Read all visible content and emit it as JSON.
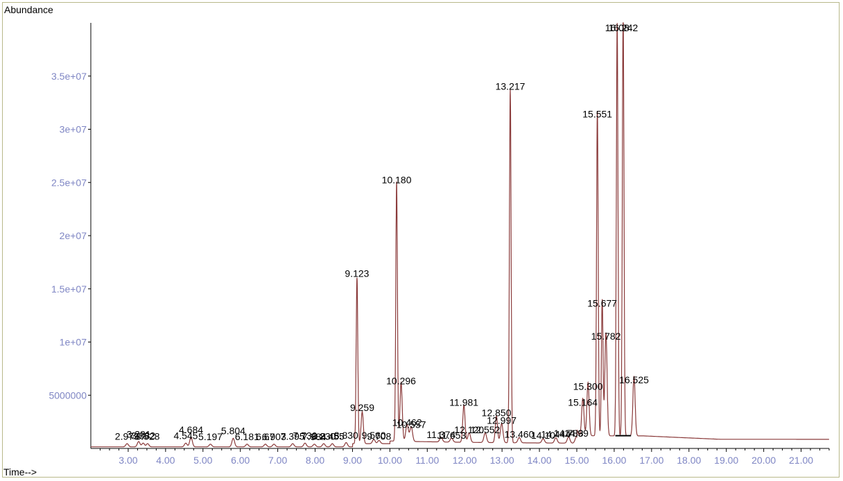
{
  "chart_data": {
    "type": "line",
    "ylabel": "Abundance",
    "xlabel": "Time-->",
    "xlim": [
      2.0,
      21.75
    ],
    "ylim": [
      0,
      40000000
    ],
    "x_ticks": [
      3.0,
      4.0,
      5.0,
      6.0,
      7.0,
      8.0,
      9.0,
      10.0,
      11.0,
      12.0,
      13.0,
      14.0,
      15.0,
      16.0,
      17.0,
      18.0,
      19.0,
      20.0,
      21.0
    ],
    "x_tick_labels": [
      "3.00",
      "4.00",
      "5.00",
      "6.00",
      "7.00",
      "8.00",
      "9.00",
      "10.00",
      "11.00",
      "12.00",
      "13.00",
      "14.00",
      "15.00",
      "16.00",
      "17.00",
      "18.00",
      "19.00",
      "20.00",
      "21.00"
    ],
    "y_ticks": [
      5000000,
      10000000,
      15000000,
      20000000,
      25000000,
      30000000,
      35000000
    ],
    "y_tick_labels": [
      "5000000",
      "1e+07",
      "1.5e+07",
      "2e+07",
      "2.5e+07",
      "3e+07",
      "3.5e+07"
    ],
    "colors": {
      "trace": "#8a3a3a",
      "axis": "#000000",
      "tick": "#7f86c4",
      "frame": "#b8b88a"
    },
    "peaks": [
      {
        "x": 2.97,
        "y": 300000,
        "label": "2.973"
      },
      {
        "x": 3.28,
        "y": 500000,
        "label": "3.281"
      },
      {
        "x": 3.4,
        "y": 350000,
        "label": "3.382"
      },
      {
        "x": 3.52,
        "y": 300000,
        "label": "3.528"
      },
      {
        "x": 4.54,
        "y": 350000,
        "label": "4.545"
      },
      {
        "x": 4.68,
        "y": 900000,
        "label": "4.684"
      },
      {
        "x": 5.2,
        "y": 250000,
        "label": "5.197"
      },
      {
        "x": 5.81,
        "y": 800000,
        "label": "5.804"
      },
      {
        "x": 6.18,
        "y": 250000,
        "label": "6.181"
      },
      {
        "x": 6.67,
        "y": 250000,
        "label": "6.67"
      },
      {
        "x": 6.9,
        "y": 250000,
        "label": "6.903"
      },
      {
        "x": 7.4,
        "y": 300000,
        "label": "7.395"
      },
      {
        "x": 7.73,
        "y": 350000,
        "label": "7.730"
      },
      {
        "x": 7.98,
        "y": 250000,
        "label": "7.984"
      },
      {
        "x": 8.23,
        "y": 300000,
        "label": "8.230"
      },
      {
        "x": 8.46,
        "y": 300000,
        "label": "8.455"
      },
      {
        "x": 8.83,
        "y": 400000,
        "label": "8.830"
      },
      {
        "x": 9.12,
        "y": 15600000,
        "label": "9.123"
      },
      {
        "x": 9.26,
        "y": 3000000,
        "label": "9.259"
      },
      {
        "x": 9.57,
        "y": 400000,
        "label": "9.560"
      },
      {
        "x": 9.71,
        "y": 300000,
        "label": "9.708"
      },
      {
        "x": 10.18,
        "y": 24400000,
        "label": "10.180"
      },
      {
        "x": 10.3,
        "y": 5500000,
        "label": "10.296"
      },
      {
        "x": 10.46,
        "y": 1600000,
        "label": "10.462"
      },
      {
        "x": 10.57,
        "y": 1400000,
        "label": "10.557"
      },
      {
        "x": 11.37,
        "y": 450000,
        "label": "11.374"
      },
      {
        "x": 11.65,
        "y": 400000,
        "label": "11.653"
      },
      {
        "x": 11.98,
        "y": 3500000,
        "label": "11.981"
      },
      {
        "x": 12.12,
        "y": 900000,
        "label": "12.120"
      },
      {
        "x": 12.55,
        "y": 900000,
        "label": "12.552"
      },
      {
        "x": 12.85,
        "y": 2500000,
        "label": "12.850"
      },
      {
        "x": 12.99,
        "y": 1800000,
        "label": "12.997"
      },
      {
        "x": 13.22,
        "y": 33200000,
        "label": "13.217"
      },
      {
        "x": 13.46,
        "y": 500000,
        "label": "13.460"
      },
      {
        "x": 14.1,
        "y": 400000,
        "label": "14.10"
      },
      {
        "x": 14.44,
        "y": 500000,
        "label": "14.444"
      },
      {
        "x": 14.78,
        "y": 600000,
        "label": "14.783"
      },
      {
        "x": 14.99,
        "y": 600000,
        "label": "14.99"
      },
      {
        "x": 15.16,
        "y": 3500000,
        "label": "15.164"
      },
      {
        "x": 15.3,
        "y": 5000000,
        "label": "15.300"
      },
      {
        "x": 15.55,
        "y": 30600000,
        "label": "15.551"
      },
      {
        "x": 15.68,
        "y": 12800000,
        "label": "15.677"
      },
      {
        "x": 15.78,
        "y": 9700000,
        "label": "15.782"
      },
      {
        "x": 16.08,
        "y": 38800000,
        "label": "16.08"
      },
      {
        "x": 16.24,
        "y": 39500000,
        "label": "16.242"
      },
      {
        "x": 16.53,
        "y": 5600000,
        "label": "16.525"
      }
    ]
  }
}
